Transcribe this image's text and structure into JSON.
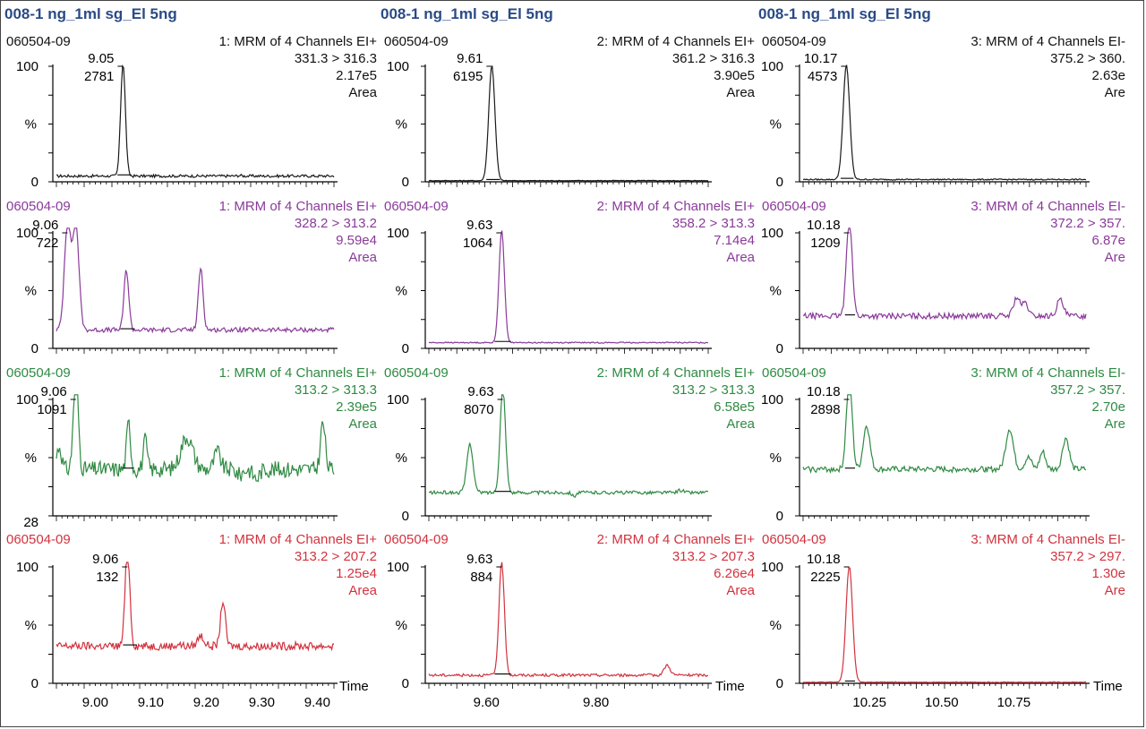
{
  "colors": {
    "black": "#1a1a1a",
    "purple": "#8a3a9a",
    "green": "#2f8a43",
    "red": "#d2323e",
    "title": "#2a4a86",
    "axis": "#000000"
  },
  "columns": [
    {
      "title": "008-1 ng_1ml sg_El 5ng",
      "time_label": "Time",
      "x_axis_ticks": [
        "9.00",
        "9.10",
        "9.20",
        "9.30",
        "9.40"
      ],
      "panels": [
        {
          "sample": "060504-09",
          "channel": "1: MRM of 4 Channels EI+",
          "transition": "331.3 > 316.3",
          "intensity": "2.17e5",
          "mode": "Area",
          "peak_rt": "9.05",
          "peak_area": "2781",
          "y_top": "100",
          "y_mid": "%",
          "y_bottom": "0",
          "color": "black"
        },
        {
          "sample": "060504-09",
          "channel": "1: MRM of 4 Channels EI+",
          "transition": "328.2 > 313.2",
          "intensity": "9.59e4",
          "mode": "Area",
          "peak_rt": "9.06",
          "peak_area": "722",
          "y_top": "100",
          "y_mid": "%",
          "y_bottom": "0",
          "color": "purple"
        },
        {
          "sample": "060504-09",
          "channel": "1: MRM of 4 Channels EI+",
          "transition": "313.2 > 313.3",
          "intensity": "2.39e5",
          "mode": "Area",
          "peak_rt": "9.06",
          "peak_area": "1091",
          "y_top": "100",
          "y_mid": "%",
          "y_bottom": "28",
          "color": "green"
        },
        {
          "sample": "060504-09",
          "channel": "1: MRM of 4 Channels EI+",
          "transition": "313.2 > 207.2",
          "intensity": "1.25e4",
          "mode": "Area",
          "peak_rt": "9.06",
          "peak_area": "132",
          "y_top": "100",
          "y_mid": "%",
          "y_bottom": "0",
          "color": "red"
        }
      ]
    },
    {
      "title": "008-1 ng_1ml sg_El 5ng",
      "time_label": "Time",
      "x_axis_ticks": [
        "9.60",
        "9.80"
      ],
      "panels": [
        {
          "sample": "060504-09",
          "channel": "2: MRM of 4 Channels EI+",
          "transition": "361.2 > 316.3",
          "intensity": "3.90e5",
          "mode": "Area",
          "peak_rt": "9.61",
          "peak_area": "6195",
          "y_top": "100",
          "y_mid": "%",
          "y_bottom": "0",
          "color": "black"
        },
        {
          "sample": "060504-09",
          "channel": "2: MRM of 4 Channels EI+",
          "transition": "358.2 > 313.3",
          "intensity": "7.14e4",
          "mode": "Area",
          "peak_rt": "9.63",
          "peak_area": "1064",
          "y_top": "100",
          "y_mid": "%",
          "y_bottom": "0",
          "color": "purple"
        },
        {
          "sample": "060504-09",
          "channel": "2: MRM of 4 Channels EI+",
          "transition": "313.2 > 313.3",
          "intensity": "6.58e5",
          "mode": "Area",
          "peak_rt": "9.63",
          "peak_area": "8070",
          "y_top": "100",
          "y_mid": "%",
          "y_bottom": "0",
          "color": "green"
        },
        {
          "sample": "060504-09",
          "channel": "2: MRM of 4 Channels EI+",
          "transition": "313.2 > 207.3",
          "intensity": "6.26e4",
          "mode": "Area",
          "peak_rt": "9.63",
          "peak_area": "884",
          "y_top": "100",
          "y_mid": "%",
          "y_bottom": "0",
          "color": "red"
        }
      ]
    },
    {
      "title": "008-1 ng_1ml sg_El 5ng",
      "time_label": "Time",
      "x_axis_ticks": [
        "10.25",
        "10.50",
        "10.75"
      ],
      "panels": [
        {
          "sample": "060504-09",
          "channel": "3: MRM of 4 Channels EI-",
          "transition": "375.2 > 360.",
          "intensity": "2.63e",
          "mode": "Are",
          "peak_rt": "10.17",
          "peak_area": "4573",
          "y_top": "100",
          "y_mid": "%",
          "y_bottom": "0",
          "color": "black"
        },
        {
          "sample": "060504-09",
          "channel": "3: MRM of 4 Channels EI-",
          "transition": "372.2 > 357.",
          "intensity": "6.87e",
          "mode": "Are",
          "peak_rt": "10.18",
          "peak_area": "1209",
          "y_top": "100",
          "y_mid": "%",
          "y_bottom": "0",
          "color": "purple"
        },
        {
          "sample": "060504-09",
          "channel": "3: MRM of 4 Channels EI-",
          "transition": "357.2 > 357.",
          "intensity": "2.70e",
          "mode": "Are",
          "peak_rt": "10.18",
          "peak_area": "2898",
          "y_top": "100",
          "y_mid": "%",
          "y_bottom": "0",
          "color": "green"
        },
        {
          "sample": "060504-09",
          "channel": "3: MRM of 4 Channels EI-",
          "transition": "357.2 > 297.",
          "intensity": "1.30e",
          "mode": "Are",
          "peak_rt": "10.18",
          "peak_area": "2225",
          "y_top": "100",
          "y_mid": "%",
          "y_bottom": "0",
          "color": "red"
        }
      ]
    }
  ],
  "chart_data": [
    {
      "type": "line",
      "x_range": [
        8.93,
        9.43
      ],
      "ticks": [
        9.0,
        9.1,
        9.2,
        9.3,
        9.4
      ],
      "traces": [
        {
          "color": "black",
          "baseline": 5,
          "noise": 1.2,
          "peaks": [
            [
              9.05,
              100,
              0.006
            ],
            [
              9.26,
              3,
              0.005
            ]
          ],
          "integration": [
            9.04,
            9.065
          ]
        },
        {
          "color": "purple",
          "baseline": 16,
          "noise": 2.0,
          "peaks": [
            [
              8.95,
              100,
              0.008
            ],
            [
              8.965,
              100,
              0.008
            ],
            [
              9.056,
              60,
              0.006
            ],
            [
              9.19,
              62,
              0.006
            ]
          ],
          "integration": [
            9.045,
            9.07
          ]
        },
        {
          "color": "green",
          "baseline": 40,
          "noise": 7,
          "peaks": [
            [
              8.935,
              40,
              0.006
            ],
            [
              8.965,
              110,
              0.006
            ],
            [
              9.06,
              60,
              0.005
            ],
            [
              9.09,
              45,
              0.005
            ],
            [
              9.165,
              48,
              0.015
            ],
            [
              9.22,
              35,
              0.008
            ],
            [
              9.26,
              15,
              0.007
            ],
            [
              9.29,
              12,
              0.008
            ],
            [
              9.41,
              60,
              0.006
            ]
          ],
          "integration": [
            9.05,
            9.07
          ]
        },
        {
          "color": "red",
          "baseline": 32,
          "noise": 3.5,
          "peaks": [
            [
              9.058,
              100,
              0.006
            ],
            [
              9.15,
              18,
              0.005
            ],
            [
              9.19,
              25,
              0.008
            ],
            [
              9.23,
              55,
              0.006
            ]
          ],
          "integration": [
            9.05,
            9.075
          ]
        }
      ]
    },
    {
      "type": "line",
      "x_range": [
        9.495,
        10.005
      ],
      "ticks": [
        9.6,
        9.8
      ],
      "traces": [
        {
          "color": "black",
          "baseline": 1,
          "noise": 0.3,
          "peaks": [
            [
              9.61,
              100,
              0.008
            ]
          ],
          "integration": [
            9.6,
            9.625
          ]
        },
        {
          "color": "purple",
          "baseline": 5,
          "noise": 0.5,
          "peaks": [
            [
              9.628,
              100,
              0.007
            ]
          ],
          "integration": [
            9.615,
            9.645
          ]
        },
        {
          "color": "green",
          "baseline": 20,
          "noise": 1.5,
          "peaks": [
            [
              9.63,
              100,
              0.007
            ],
            [
              9.57,
              52,
              0.008
            ],
            [
              9.76,
              7,
              0.005
            ],
            [
              9.955,
              12,
              0.008
            ]
          ],
          "integration": [
            9.615,
            9.645
          ]
        },
        {
          "color": "red",
          "baseline": 7,
          "noise": 1.2,
          "peaks": [
            [
              9.628,
              100,
              0.007
            ],
            [
              9.93,
              12,
              0.008
            ]
          ],
          "integration": [
            9.615,
            9.645
          ]
        }
      ]
    },
    {
      "type": "line",
      "x_range": [
        10.02,
        11.0
      ],
      "ticks": [
        10.25,
        10.5,
        10.75
      ],
      "traces": [
        {
          "color": "black",
          "baseline": 2,
          "noise": 0.5,
          "peaks": [
            [
              10.17,
              100,
              0.016
            ]
          ],
          "integration": [
            10.15,
            10.195
          ]
        },
        {
          "color": "purple",
          "baseline": 28,
          "noise": 2.5,
          "peaks": [
            [
              10.18,
              100,
              0.014
            ],
            [
              10.76,
              30,
              0.016
            ],
            [
              10.79,
              25,
              0.014
            ],
            [
              10.91,
              28,
              0.016
            ]
          ],
          "integration": [
            10.165,
            10.2
          ]
        },
        {
          "color": "green",
          "baseline": 40,
          "noise": 2.5,
          "peaks": [
            [
              10.18,
              100,
              0.014
            ],
            [
              10.24,
              58,
              0.016
            ],
            [
              10.735,
              55,
              0.018
            ],
            [
              10.8,
              30,
              0.016
            ],
            [
              10.85,
              35,
              0.014
            ],
            [
              10.93,
              47,
              0.016
            ]
          ],
          "integration": [
            10.165,
            10.2
          ]
        },
        {
          "color": "red",
          "baseline": 1,
          "noise": 0.3,
          "peaks": [
            [
              10.18,
              100,
              0.016
            ]
          ],
          "integration": [
            10.165,
            10.2
          ]
        }
      ]
    }
  ]
}
